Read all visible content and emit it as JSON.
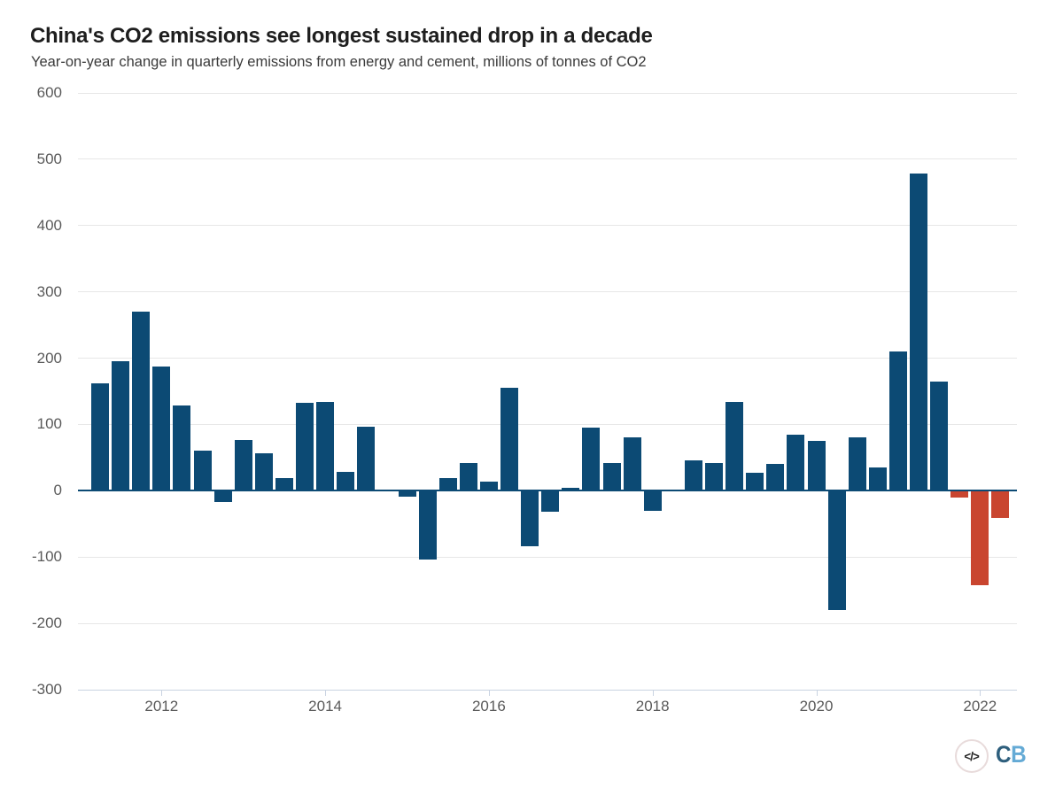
{
  "header": {
    "title": "China's CO2 emissions see longest sustained drop in a decade",
    "subtitle": "Year-on-year change in quarterly emissions from energy and cement, millions of tonnes of CO2"
  },
  "chart_data": {
    "type": "bar",
    "title": "China's CO2 emissions see longest sustained drop in a decade",
    "subtitle": "Year-on-year change in quarterly emissions from energy and cement, millions of tonnes of CO2",
    "xlabel": "",
    "ylabel": "millions of tonnes of CO2",
    "categories": [
      "2011 Q1",
      "2011 Q2",
      "2011 Q3",
      "2011 Q4",
      "2012 Q1",
      "2012 Q2",
      "2012 Q3",
      "2012 Q4",
      "2013 Q1",
      "2013 Q2",
      "2013 Q3",
      "2013 Q4",
      "2014 Q1",
      "2014 Q2",
      "2014 Q3",
      "2014 Q4",
      "2015 Q1",
      "2015 Q2",
      "2015 Q3",
      "2015 Q4",
      "2016 Q1",
      "2016 Q2",
      "2016 Q3",
      "2016 Q4",
      "2017 Q1",
      "2017 Q2",
      "2017 Q3",
      "2017 Q4",
      "2018 Q1",
      "2018 Q2",
      "2018 Q3",
      "2018 Q4",
      "2019 Q1",
      "2019 Q2",
      "2019 Q3",
      "2019 Q4",
      "2020 Q1",
      "2020 Q2",
      "2020 Q3",
      "2020 Q4",
      "2021 Q1",
      "2021 Q2",
      "2021 Q3",
      "2021 Q4",
      "2022 Q1"
    ],
    "values": [
      162,
      196,
      270,
      188,
      129,
      61,
      -16,
      77,
      57,
      19,
      132,
      134,
      29,
      96,
      0,
      -8,
      -103,
      19,
      42,
      14,
      155,
      -82,
      -30,
      4,
      95,
      42,
      80,
      -29,
      0,
      46,
      42,
      134,
      27,
      41,
      84,
      75,
      -179,
      81,
      35,
      210,
      479,
      165,
      -9,
      -141,
      -40
    ],
    "decline_quarters": [
      "2021 Q3",
      "2021 Q4",
      "2022 Q1"
    ],
    "decline_indices": [
      42,
      43,
      44
    ],
    "ylim": [
      -300,
      600
    ],
    "yticks": [
      600,
      500,
      400,
      300,
      200,
      100,
      0,
      -100,
      -200,
      -300
    ],
    "xticks": [
      {
        "label": "2012",
        "index": 3
      },
      {
        "label": "2014",
        "index": 11
      },
      {
        "label": "2016",
        "index": 19
      },
      {
        "label": "2018",
        "index": 27
      },
      {
        "label": "2020",
        "index": 35
      },
      {
        "label": "2022",
        "index": 43
      }
    ],
    "grid": true,
    "legend": false,
    "colors": {
      "bar": "#0c4a74",
      "decline_bar": "#c9452f",
      "zero_line": "#0c4a74",
      "gridline": "#e7e7e7",
      "axis_line": "#c9d3e2",
      "tick_label": "#5a5a5a"
    }
  },
  "logo": {
    "code_icon": "</>",
    "brand_c": "C",
    "brand_b": "B"
  }
}
